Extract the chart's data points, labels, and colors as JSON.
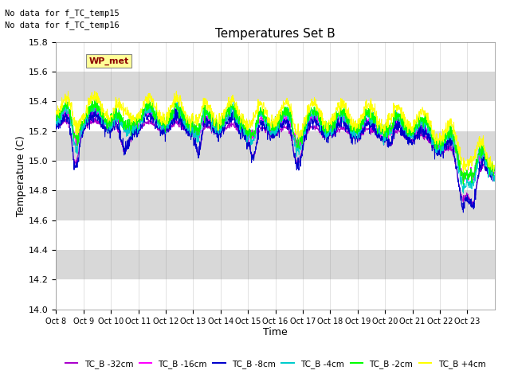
{
  "title": "Temperatures Set B",
  "xlabel": "Time",
  "ylabel": "Temperature (C)",
  "ylim": [
    14.0,
    15.8
  ],
  "annotation1": "No data for f_TC_temp15",
  "annotation2": "No data for f_TC_temp16",
  "wp_met_label": "WP_met",
  "legend_labels": [
    "TC_B -32cm",
    "TC_B -16cm",
    "TC_B -8cm",
    "TC_B -4cm",
    "TC_B -2cm",
    "TC_B +4cm"
  ],
  "line_colors": [
    "#aa00cc",
    "#ff00ff",
    "#0000cc",
    "#00cccc",
    "#00ff00",
    "#ffff00"
  ],
  "x_tick_labels": [
    "Oct 8",
    "Oct 9",
    "Oct 10",
    "Oct 11",
    "Oct 12",
    "Oct 13",
    "Oct 14",
    "Oct 15",
    "Oct 16",
    "Oct 17",
    "Oct 18",
    "Oct 19",
    "Oct 20",
    "Oct 21",
    "Oct 22",
    "Oct 23"
  ],
  "plot_bg_color": "#e8e8e8",
  "n_days": 16,
  "points_per_day": 96
}
